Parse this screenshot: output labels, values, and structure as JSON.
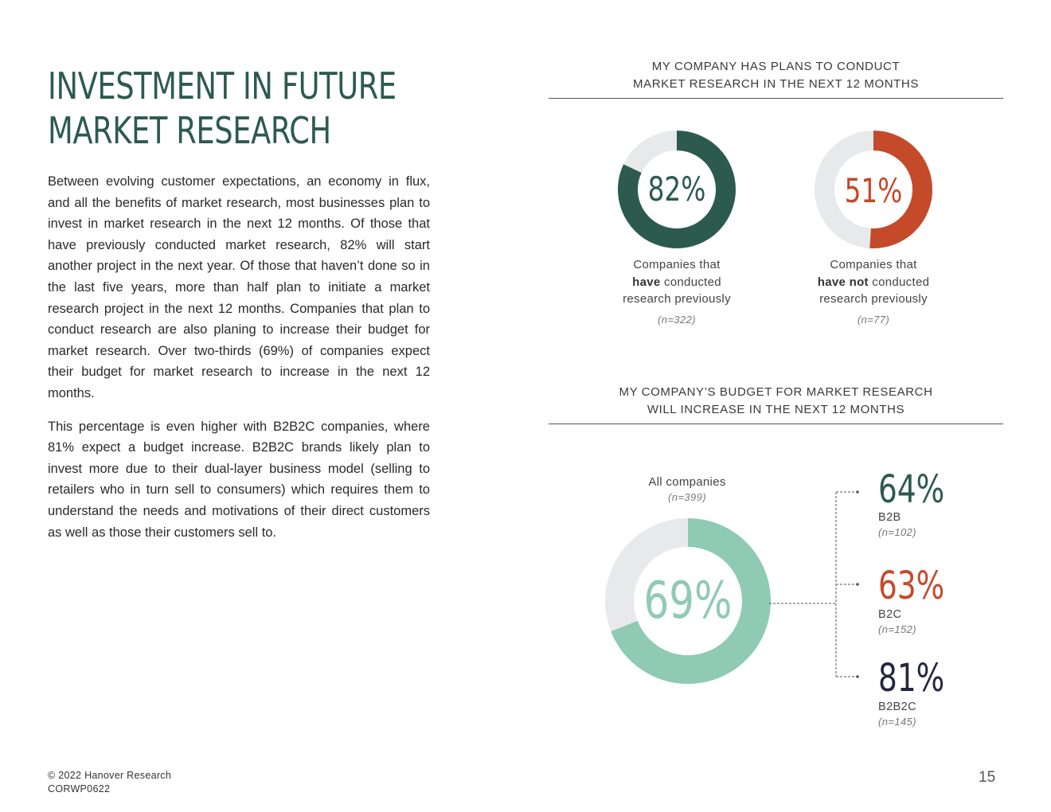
{
  "page": {
    "title_line1": "INVESTMENT IN FUTURE",
    "title_line2": "MARKET RESEARCH",
    "paragraph1": "Between evolving customer expectations, an economy in flux, and all the benefits of market research, most businesses plan to invest in market research in the next 12 months. Of those that have previously conducted market research, 82% will start another project in the next year. Of those that haven’t done so in the last five years, more than half plan to initiate a market research project in the next 12 months. Companies that plan to conduct research are also planing to increase their budget for market research. Over two-thirds (69%) of companies expect their budget for market research to increase in the next 12 months.",
    "paragraph2": "This percentage is even higher with B2B2C companies, where 81% expect a budget increase. B2B2C brands likely plan to invest more due to their dual-layer business model (selling to retailers who in turn sell to consumers) which requires them to understand the needs and motivations of their direct customers as well as those their customers sell to.",
    "footer_copyright": "© 2022 Hanover Research",
    "footer_code": "CORWP0622",
    "page_number": "15"
  },
  "section1": {
    "heading_line1": "MY COMPANY HAS PLANS TO CONDUCT",
    "heading_line2": "MARKET RESEARCH IN THE NEXT 12 MONTHS",
    "donut1": {
      "pct_label": "82%",
      "caption_line1": "Companies that",
      "caption_bold": "have",
      "caption_rest": " conducted",
      "caption_line3": "research previously",
      "n": "(n=322)"
    },
    "donut2": {
      "pct_label": "51%",
      "caption_line1": "Companies that",
      "caption_bold": "have not",
      "caption_rest": " conducted",
      "caption_line3": "research previously",
      "n": "(n=77)"
    }
  },
  "section2": {
    "heading_line1": "MY COMPANY’S BUDGET FOR MARKET RESEARCH",
    "heading_line2": "WILL INCREASE IN THE NEXT 12 MONTHS",
    "all_label": "All companies",
    "all_n": "(n=399)",
    "all_pct_label": "69%",
    "segments": [
      {
        "pct_label": "64%",
        "label": "B2B",
        "n": "(n=102)"
      },
      {
        "pct_label": "63%",
        "label": "B2C",
        "n": "(n=152)"
      },
      {
        "pct_label": "81%",
        "label": "B2B2C",
        "n": "(n=145)"
      }
    ]
  },
  "chart_data": [
    {
      "type": "pie",
      "values": [
        82,
        18
      ],
      "center_label": "82%",
      "colors": [
        "#2d5a4f",
        "#e8e9eb"
      ]
    },
    {
      "type": "pie",
      "values": [
        51,
        49
      ],
      "center_label": "51%",
      "colors": [
        "#c44a2a",
        "#e8e9eb"
      ]
    },
    {
      "type": "pie",
      "values": [
        69,
        31
      ],
      "center_label": "69%",
      "colors": [
        "#8fcab4",
        "#e8e9eb"
      ]
    }
  ],
  "colors": {
    "dark_green": "#2d5a4f",
    "orange": "#c44a2a",
    "mint": "#8fcab4",
    "navy": "#252740",
    "track": "#e8e9eb"
  }
}
